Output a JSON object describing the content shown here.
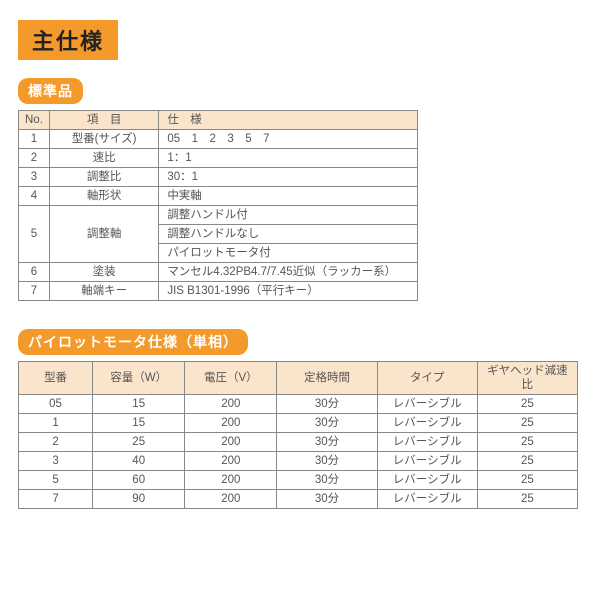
{
  "colors": {
    "accent_bg": "#f39a2a",
    "header_cell_bg": "#fbe4cc",
    "border": "#888888",
    "page_bg": "#ffffff",
    "title_text": "#222222",
    "label_text": "#ffffff",
    "body_text": "#555555"
  },
  "main_title": "主仕様",
  "section1": {
    "label": "標準品",
    "headers": {
      "no": "No.",
      "item": "項　目",
      "spec": "仕　様"
    },
    "rows": [
      {
        "no": "1",
        "item": "型番(サイズ)",
        "spec": "05　1　2　3　5　7"
      },
      {
        "no": "2",
        "item": "速比",
        "spec": "1：1"
      },
      {
        "no": "3",
        "item": "調整比",
        "spec": "30：1"
      },
      {
        "no": "4",
        "item": "軸形状",
        "spec": "中実軸"
      }
    ],
    "row5": {
      "no": "5",
      "item": "調整軸",
      "specs": [
        "調整ハンドル付",
        "調整ハンドルなし",
        "パイロットモータ付"
      ]
    },
    "rows_tail": [
      {
        "no": "6",
        "item": "塗装",
        "spec": "マンセル4.32PB4.7/7.45近似（ラッカー系）"
      },
      {
        "no": "7",
        "item": "軸端キー",
        "spec": "JIS B1301-1996（平行キー）"
      }
    ]
  },
  "section2": {
    "label": "パイロットモータ仕様（単相）",
    "headers": {
      "model": "型番",
      "capacity": "容量（W）",
      "voltage": "電圧（V）",
      "rated": "定格時間",
      "type": "タイプ",
      "gear": "ギヤヘッド減速比"
    },
    "rows": [
      {
        "model": "05",
        "capacity": "15",
        "voltage": "200",
        "rated": "30分",
        "type": "レバーシブル",
        "gear": "25"
      },
      {
        "model": "1",
        "capacity": "15",
        "voltage": "200",
        "rated": "30分",
        "type": "レバーシブル",
        "gear": "25"
      },
      {
        "model": "2",
        "capacity": "25",
        "voltage": "200",
        "rated": "30分",
        "type": "レバーシブル",
        "gear": "25"
      },
      {
        "model": "3",
        "capacity": "40",
        "voltage": "200",
        "rated": "30分",
        "type": "レバーシブル",
        "gear": "25"
      },
      {
        "model": "5",
        "capacity": "60",
        "voltage": "200",
        "rated": "30分",
        "type": "レバーシブル",
        "gear": "25"
      },
      {
        "model": "7",
        "capacity": "90",
        "voltage": "200",
        "rated": "30分",
        "type": "レバーシブル",
        "gear": "25"
      }
    ]
  }
}
